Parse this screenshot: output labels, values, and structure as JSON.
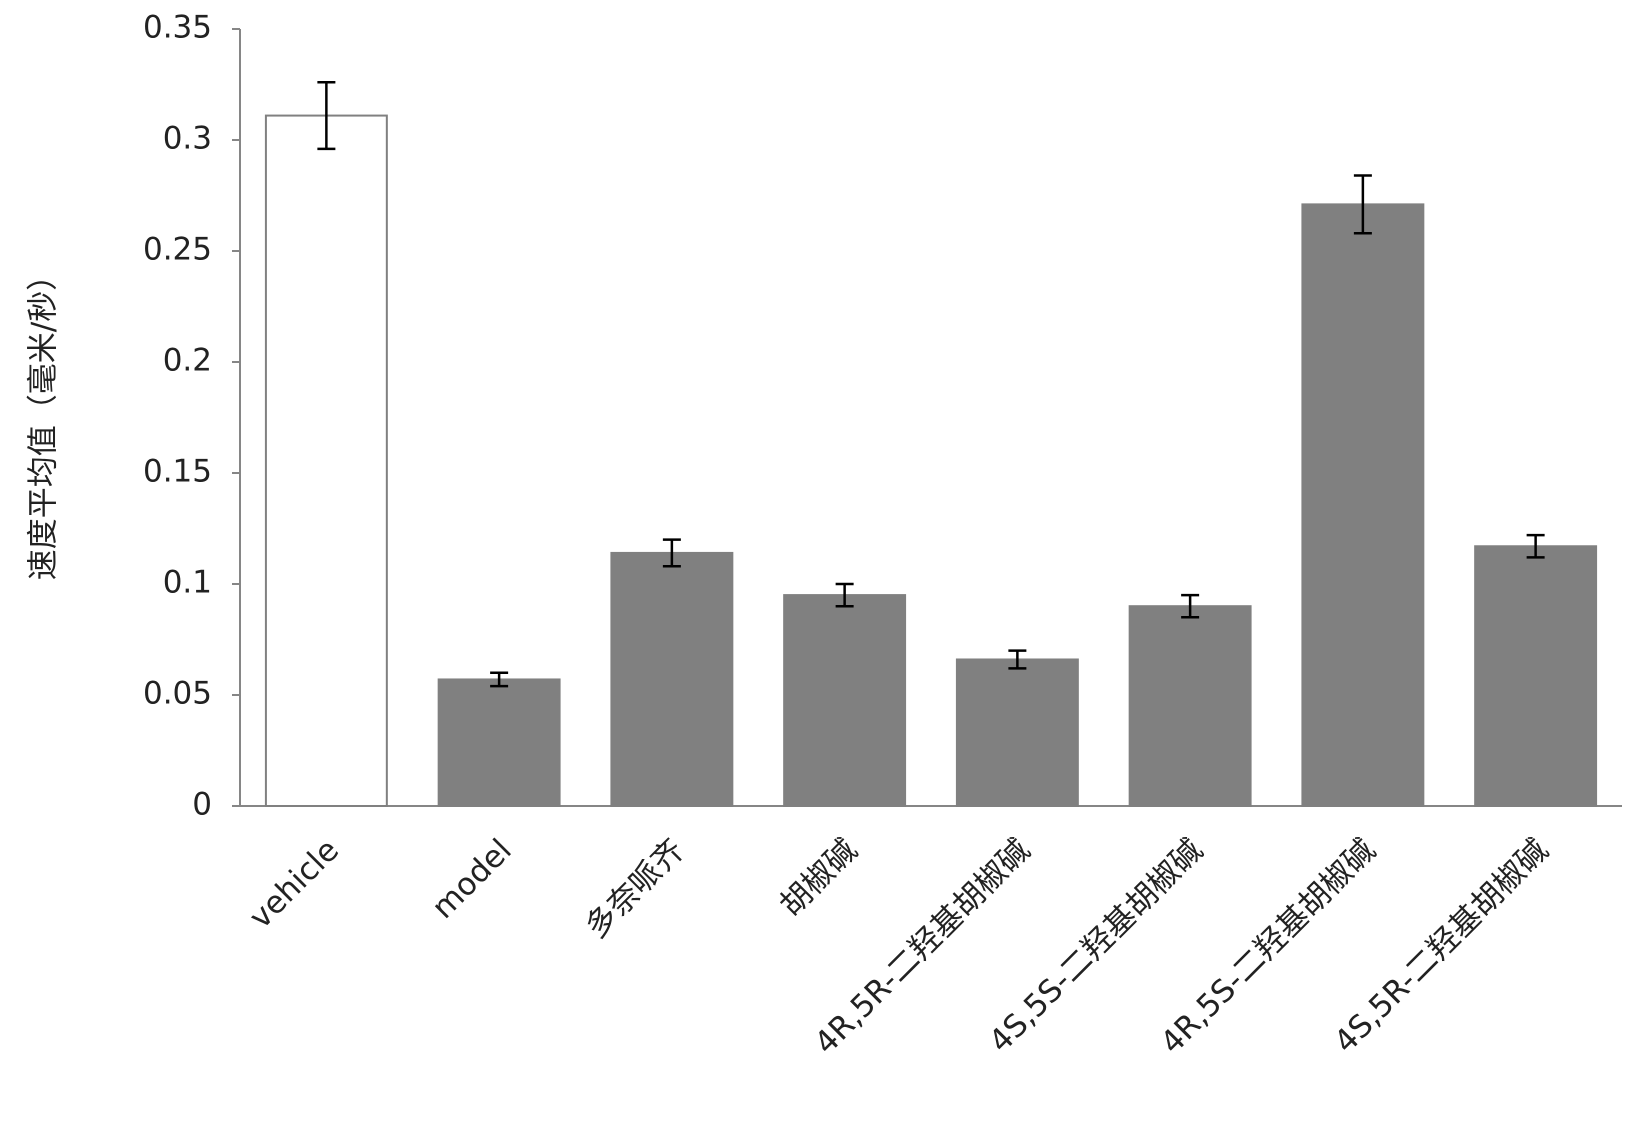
{
  "chart_data": {
    "type": "bar",
    "ylabel": "速度平均值（毫米/秒）",
    "categories": [
      "vehicle",
      "model",
      "多奈哌齐",
      "胡椒碱",
      "4R,5R-二羟基胡椒碱",
      "4S,5S-二羟基胡椒碱",
      "4R,5S-二羟基胡椒碱",
      "4S,5R-二羟基胡椒碱"
    ],
    "values": [
      0.311,
      0.057,
      0.114,
      0.095,
      0.066,
      0.09,
      0.271,
      0.117
    ],
    "errors": [
      0.015,
      0.003,
      0.006,
      0.005,
      0.004,
      0.005,
      0.013,
      0.005
    ],
    "colors": [
      "#ffffff",
      "#808080",
      "#808080",
      "#808080",
      "#808080",
      "#808080",
      "#808080",
      "#808080"
    ],
    "ylim": [
      0,
      0.35
    ],
    "yticks": [
      0,
      0.05,
      0.1,
      0.15,
      0.2,
      0.25,
      0.3,
      0.35
    ],
    "grid": false
  }
}
